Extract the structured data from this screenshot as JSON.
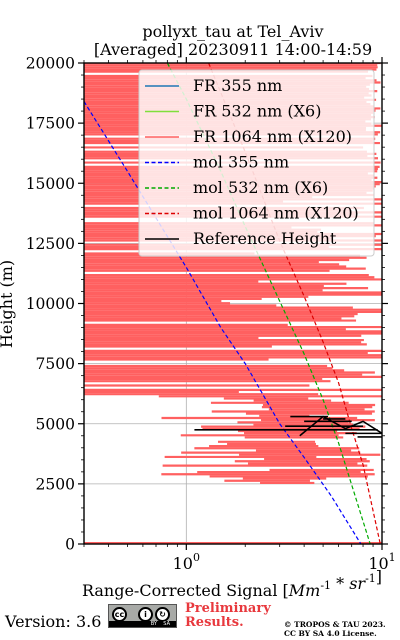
{
  "chart_data": {
    "type": "line",
    "title": "pollyxt_tau at Tel_Aviv",
    "subtitle": "[Averaged] 20230911 14:00-14:59",
    "xlabel": "Range-Corrected Signal [Mm^-1*sr^-1]",
    "ylabel": "Height (m)",
    "xscale": "log",
    "xlim": [
      0.3,
      10
    ],
    "ylim": [
      0,
      20000
    ],
    "x_ticks": [
      "10^0",
      "10^1"
    ],
    "y_ticks": [
      "0",
      "2500",
      "5000",
      "7500",
      "10000",
      "12500",
      "15000",
      "17500",
      "20000"
    ],
    "grid": true,
    "legend_placement": "top-right",
    "legend": [
      "FR 355 nm",
      "FR 532 nm (X6)",
      "FR 1064 nm (X120)",
      "mol 355 nm",
      "mol 532 nm (X6)",
      "mol 1064 nm (X120)",
      "Reference Height"
    ],
    "series": [
      {
        "name": "FR 355 nm",
        "color": "#1f77b4",
        "style": "solid",
        "x": [],
        "y": []
      },
      {
        "name": "FR 532 nm (X6)",
        "color": "#80df3c",
        "style": "solid",
        "x": [],
        "y": []
      },
      {
        "name": "FR 1064 nm (X120)",
        "color": "#ff6060",
        "style": "solid",
        "visible_range": [
          0.3,
          10
        ],
        "height_range": [
          2500,
          20000
        ]
      },
      {
        "name": "mol 355 nm",
        "color": "#0000ff",
        "style": "dashed",
        "x": [
          0.3,
          0.5,
          1.0,
          1.5,
          2.0,
          3.0,
          4.0,
          5.5,
          7.8
        ],
        "y": [
          18400,
          15500,
          11500,
          9000,
          7500,
          5000,
          3600,
          2000,
          0
        ]
      },
      {
        "name": "mol 532 nm (X6)",
        "color": "#00aa00",
        "style": "dashed",
        "x": [
          0.8,
          1.0,
          1.5,
          2.0,
          3.0,
          4.0,
          5.0,
          6.0,
          8.7
        ],
        "y": [
          20000,
          18500,
          15500,
          13200,
          10100,
          7900,
          6000,
          4200,
          0
        ]
      },
      {
        "name": "mol 1064 nm (X120)",
        "color": "#dd0000",
        "style": "dashed",
        "x": [
          1.3,
          2.0,
          3.0,
          4.0,
          5.0,
          6.0,
          7.0,
          8.0,
          9.8
        ],
        "y": [
          20000,
          16300,
          12600,
          10300,
          8400,
          6700,
          4800,
          3300,
          0
        ]
      },
      {
        "name": "Reference Height",
        "color": "#000000",
        "style": "solid",
        "x": [
          3.8,
          5.0,
          6.5,
          8.0,
          10.0
        ],
        "y": [
          4500,
          5300,
          4800,
          5100,
          4600
        ]
      }
    ]
  },
  "footer": {
    "version": "Version: 3.6",
    "preliminary_line1": "Preliminary",
    "preliminary_line2": "Results.",
    "copyright_line1": "© TROPOS & TAU 2023.",
    "copyright_line2": "CC BY SA 4.0 License."
  }
}
